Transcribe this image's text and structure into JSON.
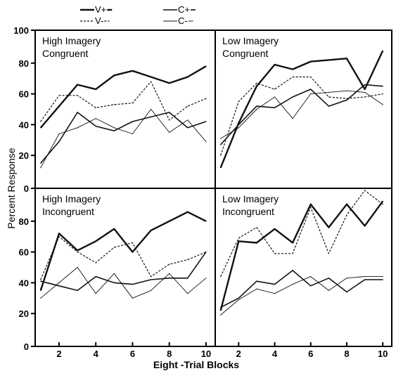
{
  "chart_data": {
    "type": "line",
    "ylabel": "Percent Response",
    "xlabel": "Eight -Trial Blocks",
    "xlim": [
      0.7,
      10.5
    ],
    "ylim": [
      0,
      100
    ],
    "x_ticks": [
      2,
      4,
      6,
      8,
      10
    ],
    "y_ticks": [
      0,
      20,
      40,
      60,
      80,
      100
    ],
    "grid": false,
    "legend_position": "top-left",
    "legend": [
      {
        "key": "Vplus",
        "label": "V+",
        "style": "thick-solid"
      },
      {
        "key": "Cplus",
        "label": "C+",
        "style": "thin-solid"
      },
      {
        "key": "Vminus",
        "label": "V-",
        "style": "dashed"
      },
      {
        "key": "Cminus",
        "label": "C-",
        "style": "hairline-solid"
      }
    ],
    "x": [
      1,
      2,
      3,
      4,
      5,
      6,
      7,
      8,
      9,
      10
    ],
    "panels": [
      {
        "title_lines": [
          "High Imagery",
          "Congruent"
        ],
        "series": [
          {
            "key": "Vplus",
            "values": [
              38,
              52,
              66,
              63,
              72,
              75,
              71,
              67,
              71,
              78
            ]
          },
          {
            "key": "Vminus",
            "values": [
              42,
              59,
              59,
              51,
              53,
              54,
              68,
              43,
              52,
              57
            ]
          },
          {
            "key": "Cplus",
            "values": [
              15,
              29,
              48,
              39,
              36,
              42,
              45,
              48,
              38,
              42
            ]
          },
          {
            "key": "Cminus",
            "values": [
              12,
              34,
              38,
              44,
              38,
              34,
              50,
              35,
              43,
              29
            ]
          }
        ]
      },
      {
        "title_lines": [
          "Low Imagery",
          "Congruent"
        ],
        "series": [
          {
            "key": "Vplus",
            "values": [
              12,
              41,
              65,
              79,
              76,
              81,
              82,
              83,
              63,
              88
            ]
          },
          {
            "key": "Vminus",
            "values": [
              20,
              55,
              67,
              63,
              71,
              71,
              58,
              57,
              58,
              60
            ]
          },
          {
            "key": "Cplus",
            "values": [
              27,
              40,
              52,
              51,
              58,
              63,
              52,
              56,
              66,
              65
            ]
          },
          {
            "key": "Cminus",
            "values": [
              31,
              38,
              50,
              58,
              44,
              60,
              61,
              62,
              61,
              53
            ]
          }
        ]
      },
      {
        "title_lines": [
          "High Imagery",
          "Incongruent"
        ],
        "series": [
          {
            "key": "Vplus",
            "values": [
              35,
              72,
              61,
              67,
              75,
              60,
              74,
              80,
              86,
              80
            ]
          },
          {
            "key": "Vminus",
            "values": [
              42,
              70,
              60,
              53,
              63,
              66,
              44,
              52,
              55,
              60
            ]
          },
          {
            "key": "Cplus",
            "values": [
              41,
              38,
              35,
              44,
              40,
              39,
              42,
              43,
              43,
              60
            ]
          },
          {
            "key": "Cminus",
            "values": [
              30,
              40,
              50,
              33,
              46,
              30,
              35,
              46,
              33,
              43
            ]
          }
        ]
      },
      {
        "title_lines": [
          "Low Imagery",
          "Incongruent"
        ],
        "series": [
          {
            "key": "Vplus",
            "values": [
              22,
              67,
              66,
              75,
              66,
              91,
              76,
              91,
              77,
              93
            ]
          },
          {
            "key": "Vminus",
            "values": [
              44,
              69,
              76,
              59,
              59,
              89,
              59,
              84,
              100,
              91
            ]
          },
          {
            "key": "Cplus",
            "values": [
              24,
              30,
              41,
              39,
              48,
              38,
              43,
              34,
              42,
              42
            ]
          },
          {
            "key": "Cminus",
            "values": [
              19,
              29,
              36,
              33,
              39,
              44,
              35,
              43,
              44,
              44
            ]
          }
        ]
      }
    ]
  }
}
